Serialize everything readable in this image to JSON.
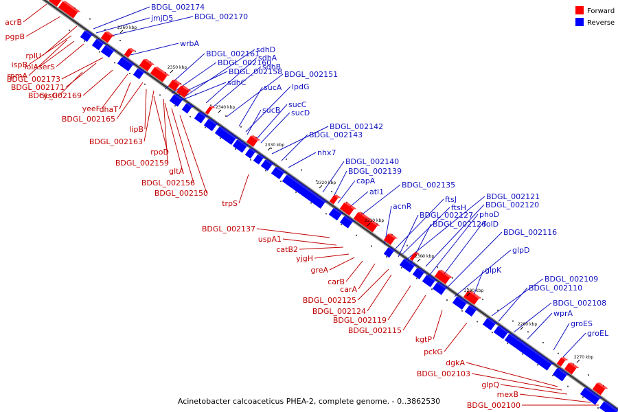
{
  "caption": "Acinetobacter calcoaceticus PHEA-2, complete genome. - 0..3862530",
  "legend": [
    {
      "label": "Forward",
      "color": "#ff0000"
    },
    {
      "label": "Reverse",
      "color": "#0000ff"
    }
  ],
  "ticks": [
    "2360 kbp",
    "2350 kbp",
    "2340 kbp",
    "2330 kbp",
    "2320 kbp",
    "2310 kbp",
    "2300 kbp",
    "2290 kbp",
    "2280 kbp",
    "2270 kbp"
  ],
  "forward_labels": [
    "acrB",
    "pgpB",
    "rplU",
    "ispB",
    "lolA",
    "serS",
    "rpmA",
    "BDGL_002173",
    "BDGL_002171",
    "cysG",
    "BDGL_002169",
    "yeeF",
    "dhaT",
    "BDGL_002165",
    "lipB",
    "BDGL_002163",
    "rpoD",
    "BDGL_002159",
    "gltA",
    "BDGL_002156",
    "BDGL_002150",
    "trpS",
    "BDGL_002137",
    "uspA1",
    "catB2",
    "yjgH",
    "greA",
    "carB",
    "carA",
    "BDGL_002125",
    "BDGL_002124",
    "BDGL_002119",
    "BDGL_002115",
    "kgtP",
    "pckG",
    "dgkA",
    "BDGL_002103",
    "glpQ",
    "mexB",
    "BDGL_002100"
  ],
  "reverse_labels": [
    "BDGL_002174",
    "jmjD5",
    "BDGL_002170",
    "wrbA",
    "BDGL_002161",
    "BDGL_002160",
    "BDGL_002158",
    "sdhC",
    "sdhD",
    "sdhA",
    "sdhB",
    "BDGL_002151",
    "sucA",
    "lpdG",
    "sucB",
    "sucC",
    "sucD",
    "BDGL_002142",
    "BDGL_002143",
    "nhx7",
    "BDGL_002140",
    "BDGL_002139",
    "capA",
    "atl1",
    "BDGL_002135",
    "acnR",
    "ftsJ",
    "ftsH",
    "BDGL_002121",
    "BDGL_002120",
    "BDGL_002127",
    "BDGL_002126",
    "phoD",
    "folD",
    "BDGL_002116",
    "glpD",
    "glpK",
    "BDGL_002109",
    "BDGL_002110",
    "BDGL_002108",
    "wprA",
    "groES",
    "groEL"
  ]
}
